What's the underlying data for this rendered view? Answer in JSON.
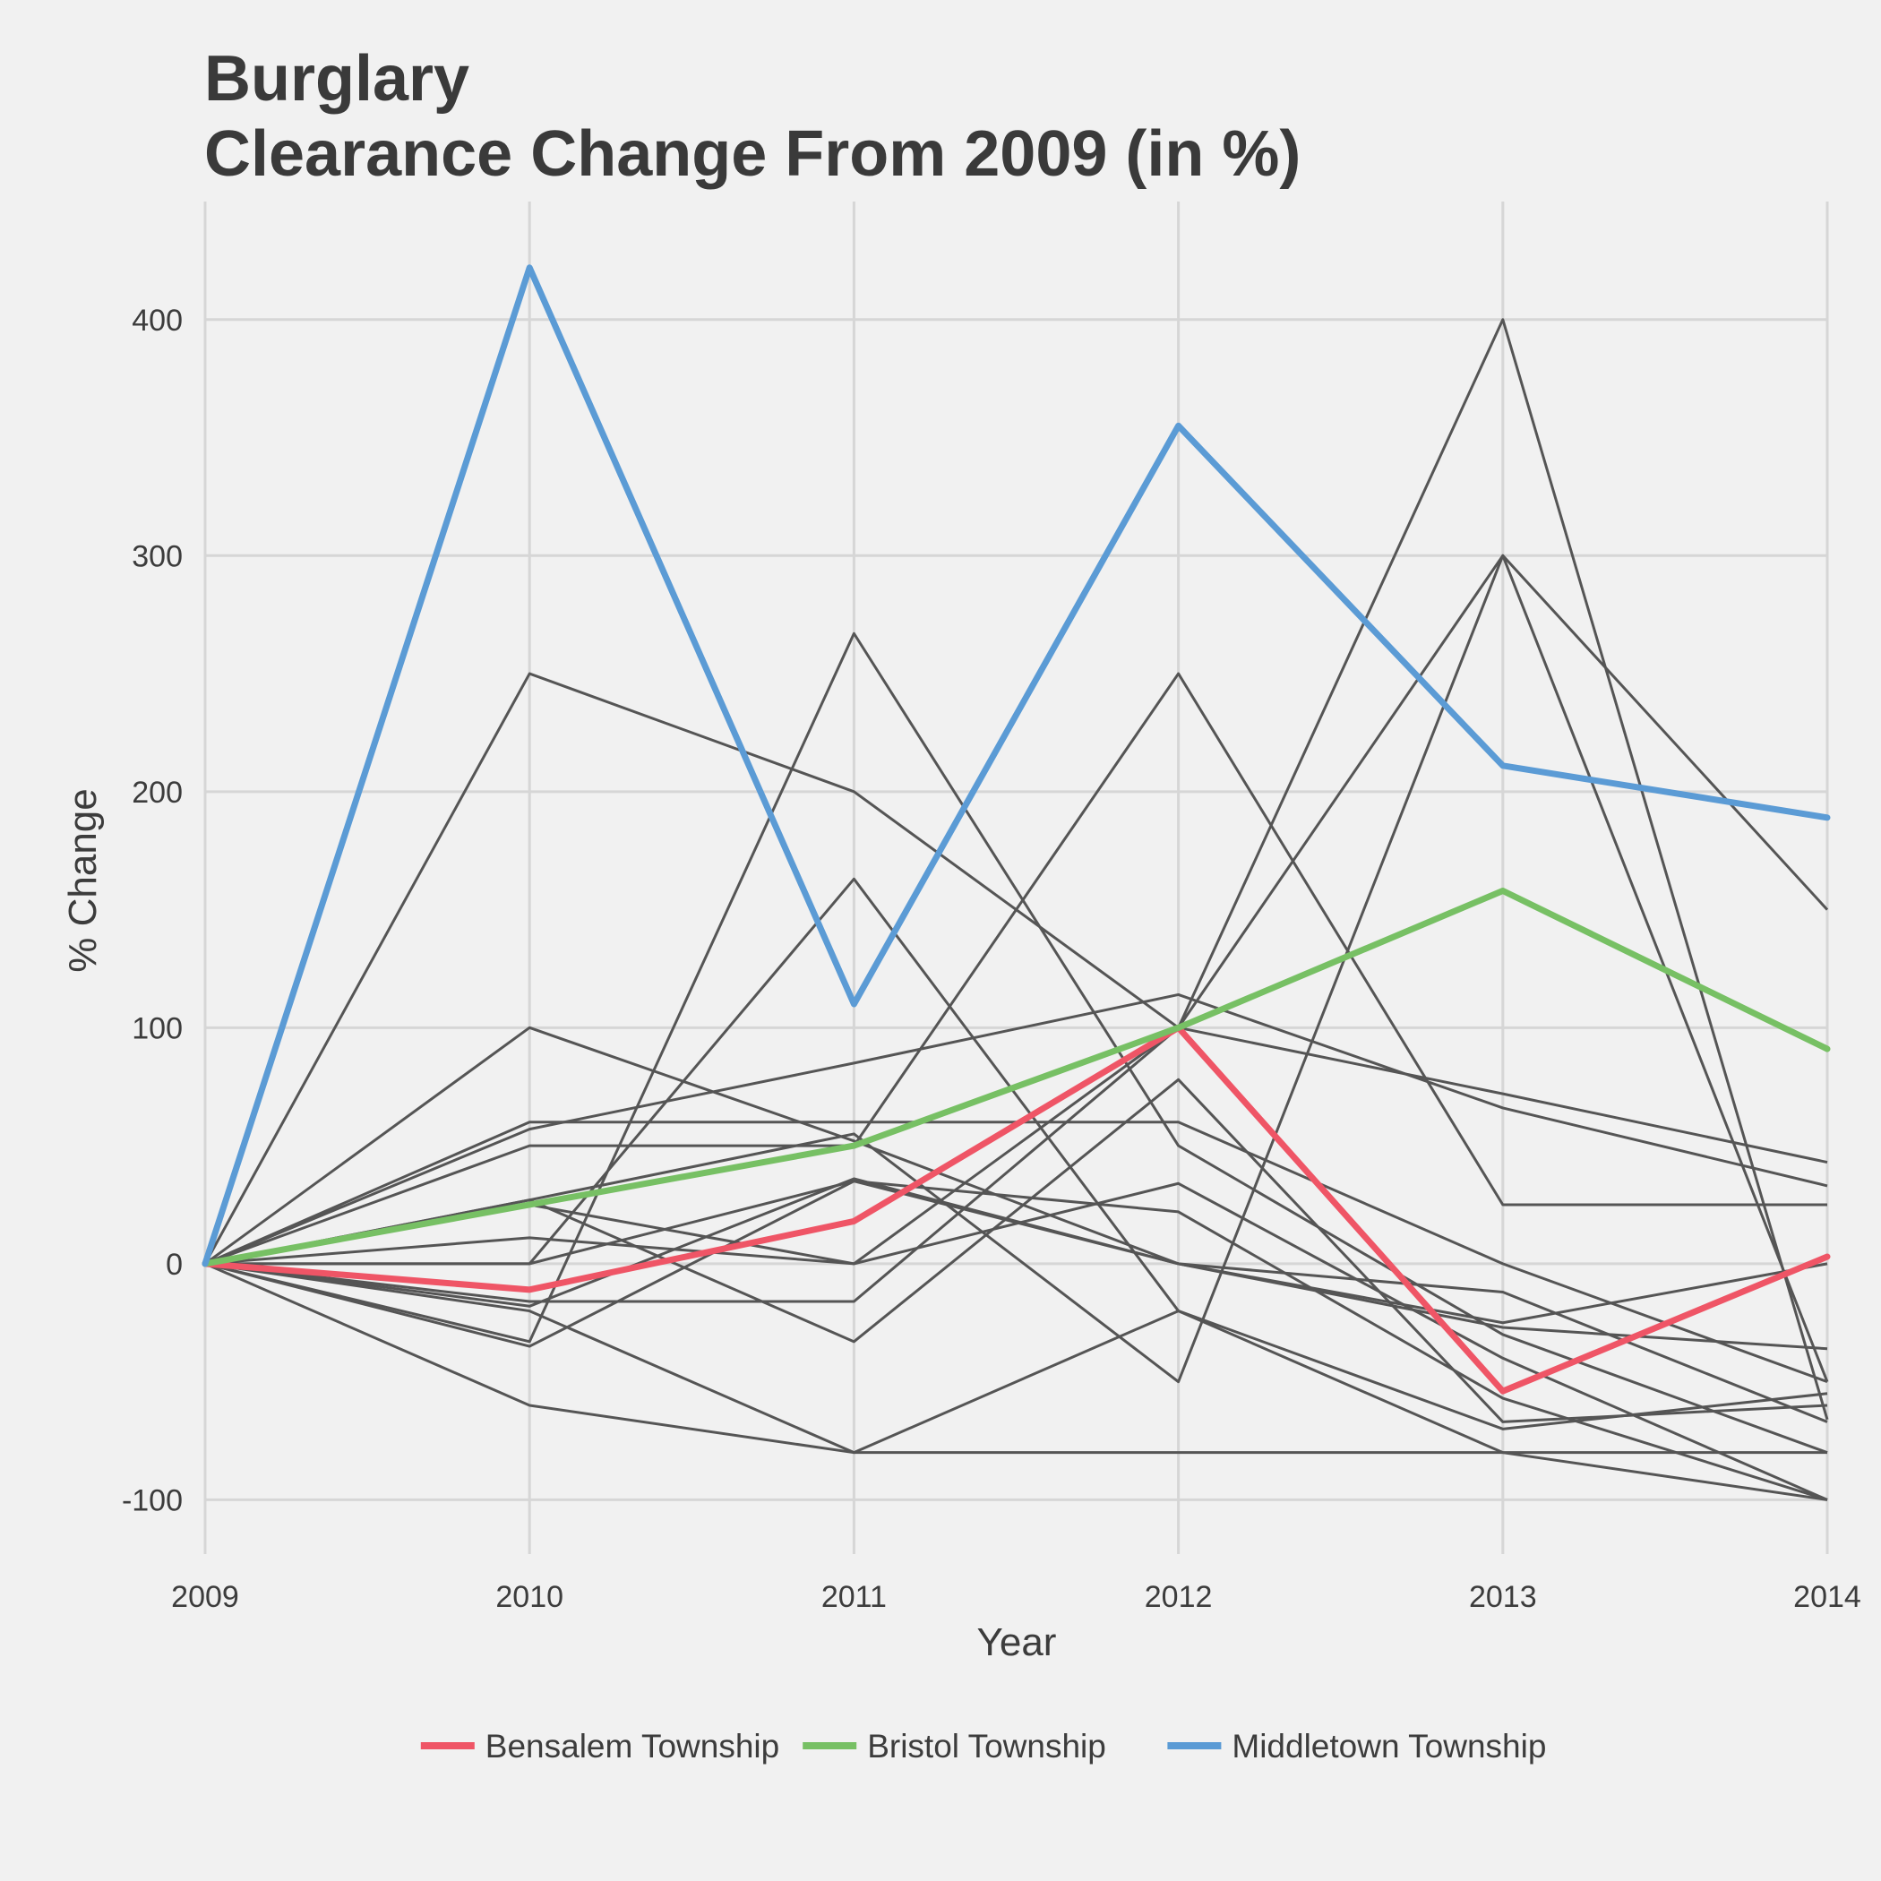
{
  "chart_data": {
    "type": "line",
    "title": "Burglary",
    "subtitle": "Clearance Change From 2009 (in %)",
    "xlabel": "Year",
    "ylabel": "% Change",
    "x": [
      2009,
      2010,
      2011,
      2012,
      2013,
      2014
    ],
    "x_tick_labels": [
      "2009",
      "2010",
      "2011",
      "2012",
      "2013",
      "2014"
    ],
    "y_ticks": [
      -100,
      0,
      100,
      200,
      300,
      400
    ],
    "y_tick_labels": [
      "-100",
      "0",
      "100",
      "200",
      "300",
      "400"
    ],
    "xlim": [
      2009,
      2014
    ],
    "ylim": [
      -123,
      450
    ],
    "grid": true,
    "legend_position": "bottom",
    "highlight_series": [
      {
        "name": "Bensalem Township",
        "color": "#ef5566",
        "values": [
          0,
          -11,
          18,
          100,
          -54,
          3
        ]
      },
      {
        "name": "Bristol Township",
        "color": "#77c064",
        "values": [
          0,
          25,
          50,
          100,
          158,
          91
        ]
      },
      {
        "name": "Middletown Township",
        "color": "#5b9bd5",
        "values": [
          0,
          422,
          110,
          355,
          211,
          189
        ]
      }
    ],
    "background_series_color": "#555555",
    "background_series": [
      [
        0,
        250,
        200,
        100,
        72,
        43
      ],
      [
        0,
        100,
        52,
        0,
        -25,
        0
      ],
      [
        0,
        60,
        60,
        60,
        0,
        -50
      ],
      [
        0,
        50,
        50,
        250,
        25,
        25
      ],
      [
        0,
        57,
        85,
        114,
        66,
        33
      ],
      [
        0,
        27,
        55,
        -50,
        300,
        150
      ],
      [
        0,
        11,
        0,
        100,
        400,
        -66
      ],
      [
        0,
        0,
        163,
        -20,
        -80,
        -80
      ],
      [
        0,
        -16,
        -16,
        100,
        300,
        -50
      ],
      [
        0,
        -20,
        -80,
        -80,
        -80,
        -100
      ],
      [
        0,
        -33,
        267,
        50,
        -30,
        -80
      ],
      [
        0,
        -35,
        35,
        22,
        -57,
        -100
      ],
      [
        0,
        -60,
        -80,
        -20,
        -70,
        -55
      ],
      [
        0,
        27,
        -33,
        78,
        -67,
        -60
      ],
      [
        0,
        25,
        0,
        34,
        -40,
        -100
      ],
      [
        0,
        -18,
        36,
        0,
        -27,
        -36
      ],
      [
        0,
        0,
        35,
        0,
        -12,
        -67
      ]
    ]
  }
}
